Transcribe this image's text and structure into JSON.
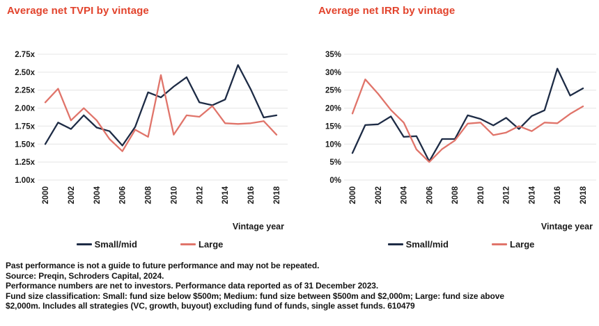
{
  "colors": {
    "title_red": "#e2432c",
    "small_mid_navy": "#1d2b45",
    "large_salmon": "#e0746a",
    "gridline": "#e4e4e4",
    "text_dark": "#1a1a1a"
  },
  "chart_data": [
    {
      "type": "line",
      "title": "Average net TVPI by vintage",
      "xlabel": "Vintage year",
      "ylabel": "",
      "grid": true,
      "legend_position": "bottom",
      "x": [
        2000,
        2001,
        2002,
        2003,
        2004,
        2005,
        2006,
        2007,
        2008,
        2009,
        2010,
        2011,
        2012,
        2013,
        2014,
        2015,
        2016,
        2017,
        2018
      ],
      "xlim": [
        2000,
        2018
      ],
      "x_ticks": [
        2000,
        2002,
        2004,
        2006,
        2008,
        2010,
        2012,
        2014,
        2016,
        2018
      ],
      "ylim": [
        1.0,
        2.75
      ],
      "y_ticks": [
        2.75,
        2.5,
        2.25,
        2.0,
        1.75,
        1.5,
        1.25,
        1.0
      ],
      "y_tick_labels": [
        "2.75x",
        "2.50x",
        "2.25x",
        "2.00x",
        "1.75x",
        "1.50x",
        "1.25x",
        "1.00x"
      ],
      "series": [
        {
          "name": "Small/mid",
          "color": "#1d2b45",
          "values": [
            1.5,
            1.8,
            1.71,
            1.9,
            1.73,
            1.68,
            1.48,
            1.74,
            2.22,
            2.15,
            2.3,
            2.43,
            2.08,
            2.04,
            2.12,
            2.6,
            2.26,
            1.87,
            1.9
          ]
        },
        {
          "name": "Large",
          "color": "#e0746a",
          "values": [
            2.08,
            2.27,
            1.83,
            2.0,
            1.83,
            1.57,
            1.4,
            1.7,
            1.6,
            2.46,
            1.63,
            1.9,
            1.88,
            2.03,
            1.79,
            1.78,
            1.79,
            1.82,
            1.63
          ]
        }
      ]
    },
    {
      "type": "line",
      "title": "Average net IRR by vintage",
      "xlabel": "Vintage year",
      "ylabel": "",
      "grid": true,
      "legend_position": "bottom",
      "x": [
        2000,
        2001,
        2002,
        2003,
        2004,
        2005,
        2006,
        2007,
        2008,
        2009,
        2010,
        2011,
        2012,
        2013,
        2014,
        2015,
        2016,
        2017,
        2018
      ],
      "xlim": [
        2000,
        2018
      ],
      "x_ticks": [
        2000,
        2002,
        2004,
        2006,
        2008,
        2010,
        2012,
        2014,
        2016,
        2018
      ],
      "ylim": [
        0,
        35
      ],
      "y_ticks": [
        35,
        30,
        25,
        20,
        15,
        10,
        5,
        0
      ],
      "y_tick_labels": [
        "35%",
        "30%",
        "25%",
        "20%",
        "15%",
        "10%",
        "5%",
        "0%"
      ],
      "series": [
        {
          "name": "Small/mid",
          "color": "#1d2b45",
          "values": [
            7.5,
            15.3,
            15.5,
            17.7,
            12.0,
            12.2,
            5.2,
            11.4,
            11.4,
            18.0,
            17.0,
            15.2,
            17.3,
            14.2,
            17.8,
            19.4,
            31.0,
            23.5,
            25.5
          ]
        },
        {
          "name": "Large",
          "color": "#e0746a",
          "values": [
            18.5,
            28.0,
            24.0,
            19.5,
            16.0,
            8.5,
            5.0,
            8.6,
            11.0,
            15.7,
            16.0,
            12.5,
            13.2,
            15.0,
            13.6,
            16.0,
            15.8,
            18.4,
            20.5
          ]
        }
      ]
    }
  ],
  "footnotes": {
    "lines": [
      "Past performance is not a guide to future performance and may not be repeated.",
      "Source: Preqin, Schroders Capital, 2024.",
      "Performance numbers are net to investors. Performance data reported as of 31 December 2023.",
      "Fund size classification: Small: fund size below $500m; Medium: fund size between $500m and $2,000m; Large: fund size above",
      "$2,000m.  Includes all strategies (VC, growth, buyout) excluding fund of funds, single asset funds. 610479"
    ]
  }
}
